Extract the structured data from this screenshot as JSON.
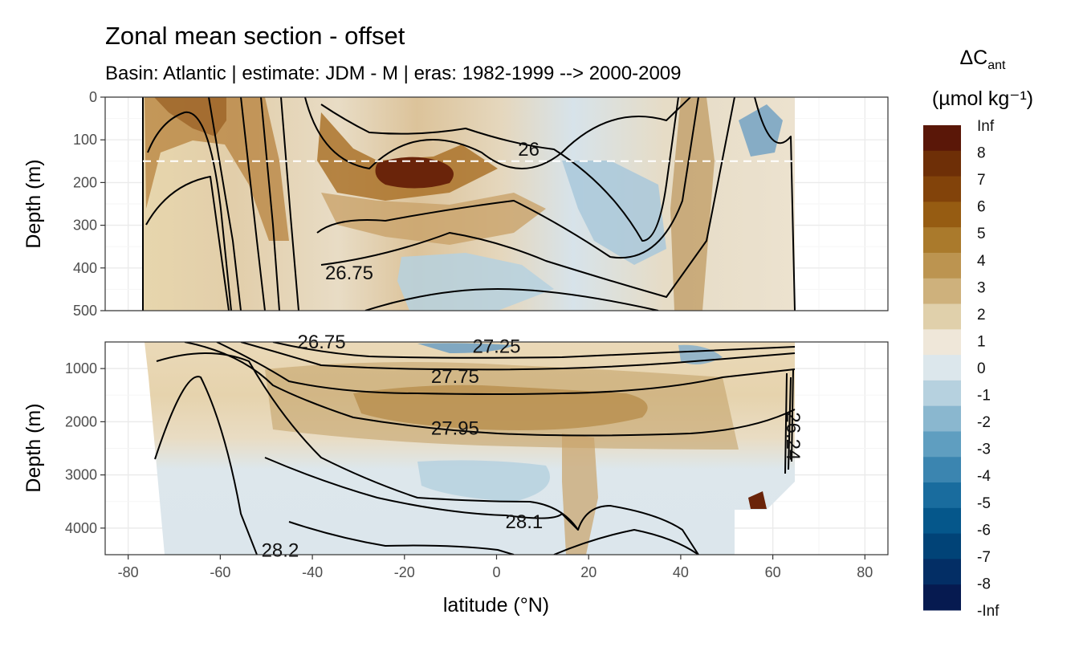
{
  "chart_data": {
    "type": "heatmap",
    "title": "Zonal mean section - offset",
    "subtitle": "Basin: Atlantic | estimate: JDM - M | eras: 1982-1999 --> 2000-2009",
    "xlabel": "latitude (°N)",
    "ylabel": "Depth (m)",
    "xlim": [
      -85,
      85
    ],
    "x_ticks": [
      -80,
      -60,
      -40,
      -20,
      0,
      20,
      40,
      60,
      80
    ],
    "grid": true,
    "panels": [
      {
        "name": "upper",
        "ylim": [
          500,
          0
        ],
        "y_ticks": [
          0,
          100,
          200,
          300,
          400,
          500
        ],
        "reference_line": {
          "depth": 150,
          "style": "dashed",
          "color": "#ffffff"
        },
        "contour_labels": [
          {
            "text": "26",
            "lat": 7,
            "depth": 122
          },
          {
            "text": "26.75",
            "lat": -32,
            "depth": 412
          }
        ]
      },
      {
        "name": "lower",
        "ylim": [
          4500,
          500
        ],
        "y_ticks": [
          1000,
          2000,
          3000,
          4000
        ],
        "contour_labels": [
          {
            "text": "27.25",
            "lat": 0,
            "depth": 580
          },
          {
            "text": "27.75",
            "lat": -9,
            "depth": 1150
          },
          {
            "text": "27.95",
            "lat": -9,
            "depth": 2120
          },
          {
            "text": "28.1",
            "lat": 6,
            "depth": 3880
          },
          {
            "text": "28.2",
            "lat": -47,
            "depth": 4420
          },
          {
            "text": "26.75",
            "lat": -38,
            "depth": 500
          },
          {
            "text": "26.24",
            "lat": 63,
            "depth": 2150
          }
        ]
      }
    ],
    "color_scale": {
      "title": "ΔC",
      "title_subscript": "ant",
      "units": "(µmol kg⁻¹)",
      "labels": [
        "Inf",
        "8",
        "7",
        "6",
        "5",
        "4",
        "3",
        "2",
        "1",
        "0",
        "-1",
        "-2",
        "-3",
        "-4",
        "-5",
        "-6",
        "-7",
        "-8",
        "-Inf"
      ],
      "colors": [
        "#5a1708",
        "#6e2f07",
        "#82430a",
        "#965c12",
        "#aa7a2c",
        "#bc9450",
        "#ceb17c",
        "#e0d0ab",
        "#efe7d9",
        "#dce7ec",
        "#b6d1df",
        "#8ab7cf",
        "#5f9ec0",
        "#3b85b0",
        "#196c9e",
        "#05578b",
        "#014377",
        "#032e65",
        "#061a50"
      ]
    }
  }
}
